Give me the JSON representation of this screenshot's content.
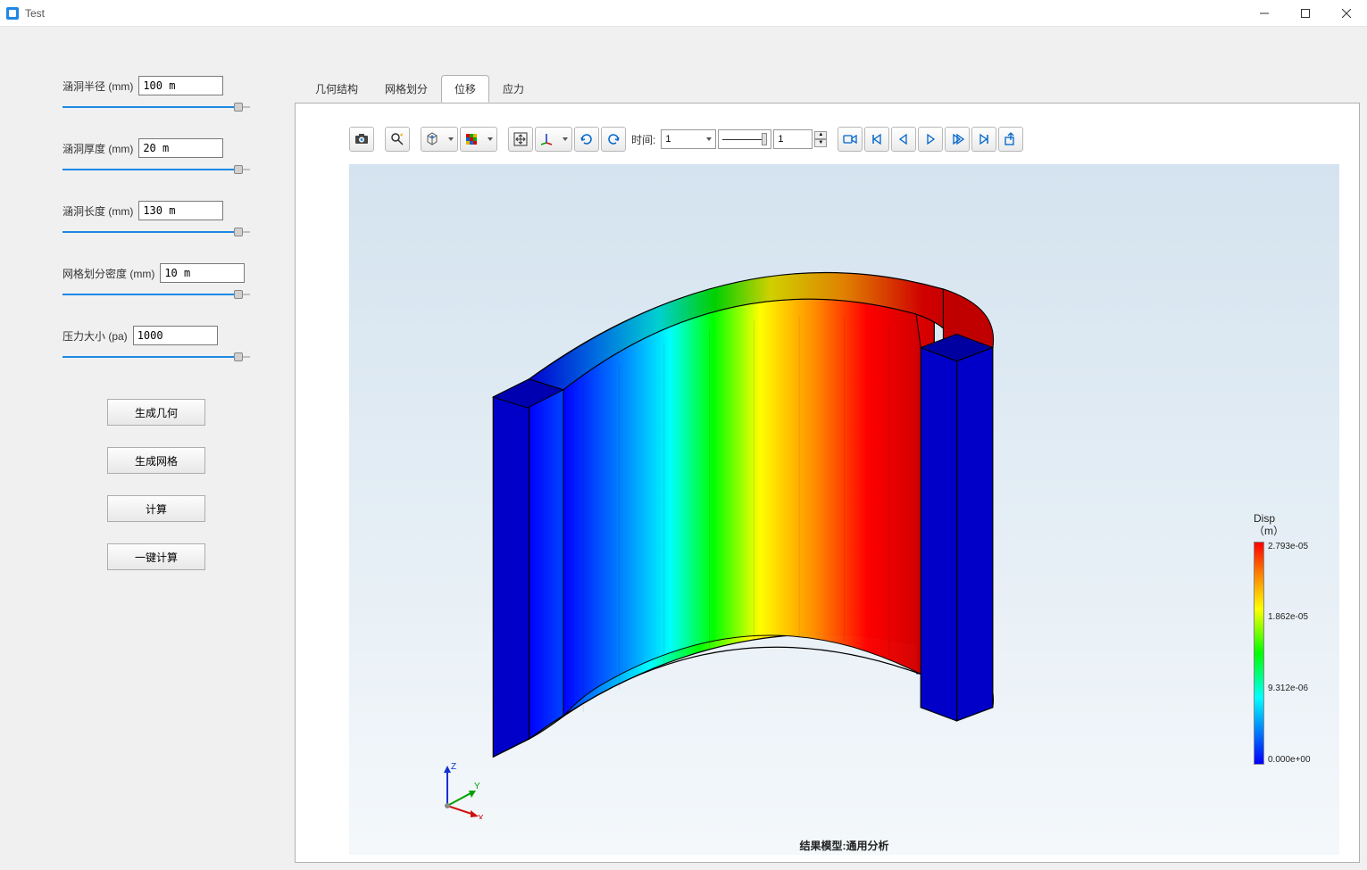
{
  "window": {
    "title": "Test"
  },
  "sidebar": {
    "params": [
      {
        "label": "涵洞半径 (mm)",
        "value": "100 m",
        "fill_pct": 94
      },
      {
        "label": "涵洞厚度 (mm)",
        "value": "20 m",
        "fill_pct": 94
      },
      {
        "label": "涵洞长度 (mm)",
        "value": "130 m",
        "fill_pct": 94
      },
      {
        "label": "网格划分密度 (mm)",
        "value": "10 m",
        "fill_pct": 94
      },
      {
        "label": "压力大小 (pa)",
        "value": "1000",
        "fill_pct": 94
      }
    ],
    "buttons": [
      {
        "label": "生成几何"
      },
      {
        "label": "生成网格"
      },
      {
        "label": "计算"
      },
      {
        "label": "一键计算"
      }
    ]
  },
  "tabs": {
    "items": [
      {
        "label": "几何结构",
        "active": false
      },
      {
        "label": "网格划分",
        "active": false
      },
      {
        "label": "位移",
        "active": true
      },
      {
        "label": "应力",
        "active": false
      }
    ]
  },
  "toolbar": {
    "time_label": "时间:",
    "time_value": "1",
    "step_value": "1"
  },
  "triad": {
    "axes": {
      "x": "X",
      "y": "Y",
      "z": "Z"
    },
    "colors": {
      "x": "#d01010",
      "y": "#00a000",
      "z": "#1030d0"
    }
  },
  "colorbar": {
    "title1": "Disp",
    "title2": "（m）",
    "ticks": [
      "2.793e-05",
      "1.862e-05",
      "9.312e-06",
      "0.000e+00"
    ],
    "gradient_stops": [
      "#ff0000",
      "#ff7f00",
      "#ffff00",
      "#00ff00",
      "#00ffff",
      "#0000ff"
    ]
  },
  "canvas": {
    "bottom_label": "结果模型:通用分析",
    "bg_top": "#d4e3ef",
    "bg_bottom": "#f4f8fb"
  }
}
